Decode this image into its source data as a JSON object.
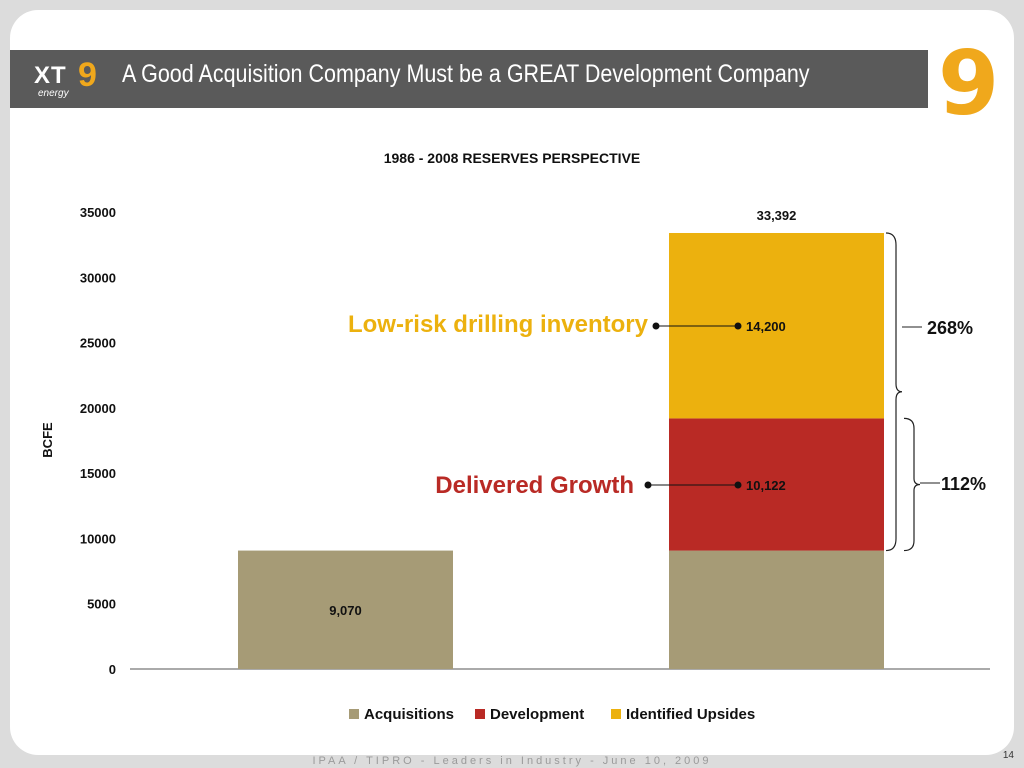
{
  "slide": {
    "title": "A Good Acquisition Company Must be a GREAT Development Company",
    "logo": {
      "text_xt": "XT",
      "text_nine": "9",
      "text_energy": "energy"
    },
    "big_nine": "9",
    "footer": "IPAA / TIPRO - Leaders in Industry - June 10, 2009",
    "page_number": "14"
  },
  "colors": {
    "header": "#5a5a5a",
    "accent": "#f0a81c",
    "acquisitions": "#a69b76",
    "development": "#b92a25",
    "identified_upsides": "#ecb10e"
  },
  "chart_data": {
    "type": "bar",
    "stacked": true,
    "title": "1986 - 2008 RESERVES PERSPECTIVE",
    "ylabel": "BCFE",
    "xlabel": "",
    "ylim": [
      0,
      35000
    ],
    "yticks": [
      "0",
      "5000",
      "10000",
      "15000",
      "20000",
      "25000",
      "30000",
      "35000"
    ],
    "categories": [
      "",
      ""
    ],
    "series": [
      {
        "name": "Acquisitions",
        "values": [
          9070,
          9070
        ]
      },
      {
        "name": "Development",
        "values": [
          0,
          10122
        ]
      },
      {
        "name": "Identified Upsides",
        "values": [
          0,
          14200
        ]
      }
    ],
    "data_labels": {
      "bar1_acquisitions": "9,070",
      "bar2_development": "10,122",
      "bar2_upsides": "14,200",
      "bar2_total": "33,392"
    },
    "annotations": {
      "low_risk": "Low-risk drilling inventory",
      "delivered": "Delivered Growth",
      "pct_upper": "268%",
      "pct_lower": "112%"
    },
    "legend_position": "bottom",
    "grid": false
  }
}
